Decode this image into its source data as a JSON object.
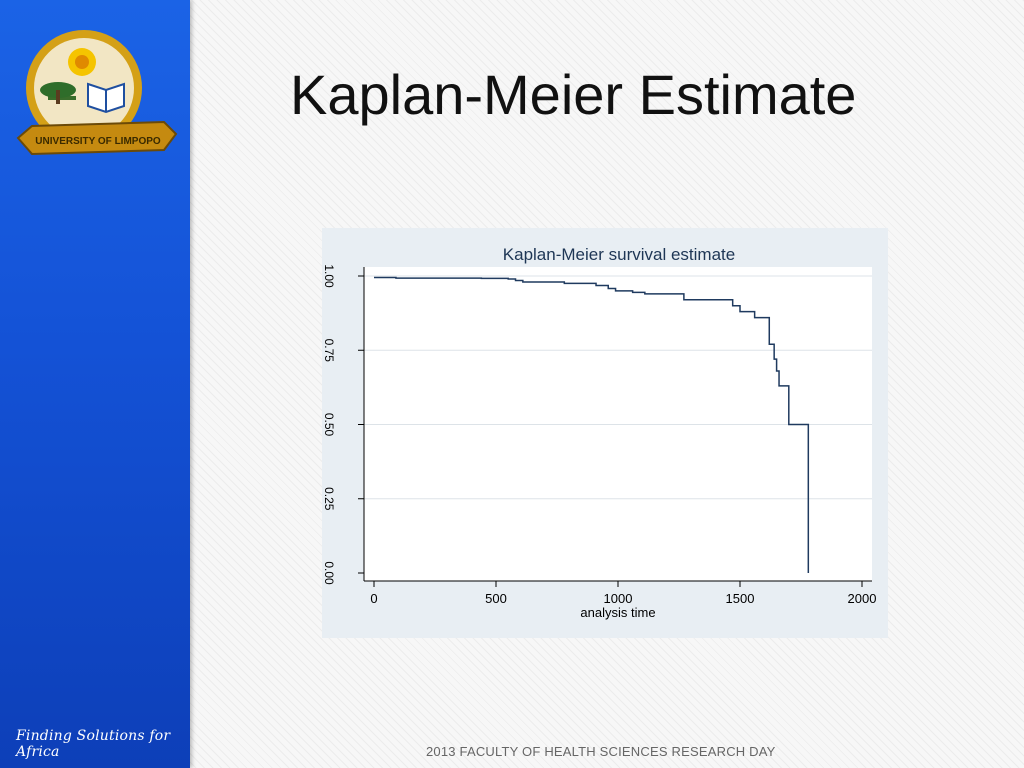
{
  "slide": {
    "title": "Kaplan-Meier Estimate",
    "footer": "2013 FACULTY OF HEALTH SCIENCES RESEARCH DAY",
    "tagline": "Finding Solutions for Africa",
    "logo_text": "UNIVERSITY OF LIMPOPO"
  },
  "colors": {
    "sidebar": "#1452d6",
    "curve": "#1f3a5f",
    "panel": "#e8eef3"
  },
  "chart_data": {
    "type": "line",
    "step": true,
    "title": "Kaplan-Meier survival estimate",
    "xlabel": "analysis time",
    "ylabel": "",
    "xlim": [
      0,
      2000
    ],
    "ylim": [
      0,
      1
    ],
    "xticks": [
      0,
      500,
      1000,
      1500,
      2000
    ],
    "yticks": [
      0,
      0.25,
      0.5,
      0.75,
      1
    ],
    "xtick_labels": [
      "0",
      "500",
      "1000",
      "1500",
      "2000"
    ],
    "ytick_labels": [
      "0.00",
      "0.25",
      "0.50",
      "0.75",
      "1.00"
    ],
    "grid": true,
    "series": [
      {
        "x": [
          0,
          90,
          440,
          550,
          580,
          610,
          780,
          910,
          960,
          990,
          1060,
          1110,
          1270,
          1340,
          1470,
          1500,
          1560,
          1620,
          1640,
          1650,
          1660,
          1700,
          1710,
          1780
        ],
        "y": [
          0.995,
          0.993,
          0.992,
          0.99,
          0.985,
          0.98,
          0.975,
          0.968,
          0.958,
          0.95,
          0.945,
          0.94,
          0.92,
          0.92,
          0.9,
          0.88,
          0.86,
          0.77,
          0.72,
          0.68,
          0.63,
          0.5,
          0.5,
          0.0
        ]
      }
    ]
  }
}
